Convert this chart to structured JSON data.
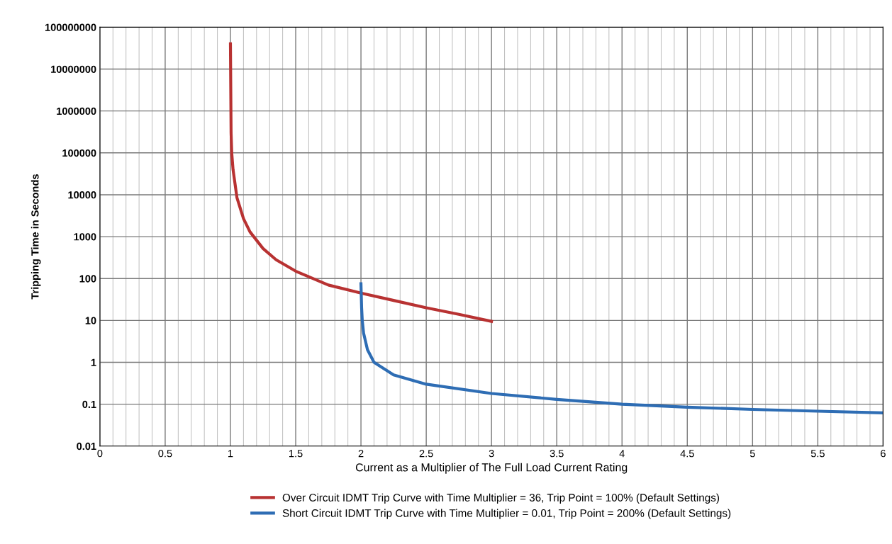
{
  "chart_data": {
    "type": "line",
    "xlabel": "Current as a Multiplier of The Full Load Current Rating",
    "ylabel": "Tripping Time in Seconds",
    "log": "y",
    "grid": true,
    "legend": "bottom",
    "marker": "none",
    "line_style": "solid",
    "xlim": [
      0,
      6
    ],
    "xticks": [
      0,
      0.5,
      1,
      1.5,
      2,
      2.5,
      3,
      3.5,
      4,
      4.5,
      5,
      5.5,
      6
    ],
    "ylim": [
      0.01,
      100000000
    ],
    "yticks": [
      0.01,
      0.1,
      1,
      10,
      100,
      1000,
      10000,
      100000,
      1000000,
      10000000,
      100000000
    ],
    "series": [
      {
        "name": "Over Circuit IDMT Trip Curve with Time Multiplier = 36, Trip Point = 100% (Default Settings)",
        "color": "#b83232",
        "x": [
          1.0,
          1.005,
          1.01,
          1.02,
          1.05,
          1.1,
          1.15,
          1.25,
          1.35,
          1.5,
          1.75,
          2.0,
          2.25,
          2.5,
          2.75,
          3.0
        ],
        "values": [
          40000000,
          300000,
          100000,
          40000,
          8500,
          2700,
          1300,
          520,
          280,
          150,
          70,
          45,
          30,
          20,
          14,
          9.5
        ]
      },
      {
        "name": "Short Circuit IDMT Trip Curve with Time Multiplier = 0.01, Trip Point = 200% (Default Settings)",
        "color": "#2e6db4",
        "x": [
          2.0,
          2.005,
          2.01,
          2.02,
          2.05,
          2.1,
          2.25,
          2.5,
          3.0,
          3.5,
          4.0,
          4.5,
          5.0,
          5.5,
          6.0
        ],
        "values": [
          75,
          20,
          10,
          5,
          2,
          1,
          0.5,
          0.3,
          0.18,
          0.13,
          0.1,
          0.085,
          0.075,
          0.068,
          0.062
        ]
      }
    ]
  }
}
